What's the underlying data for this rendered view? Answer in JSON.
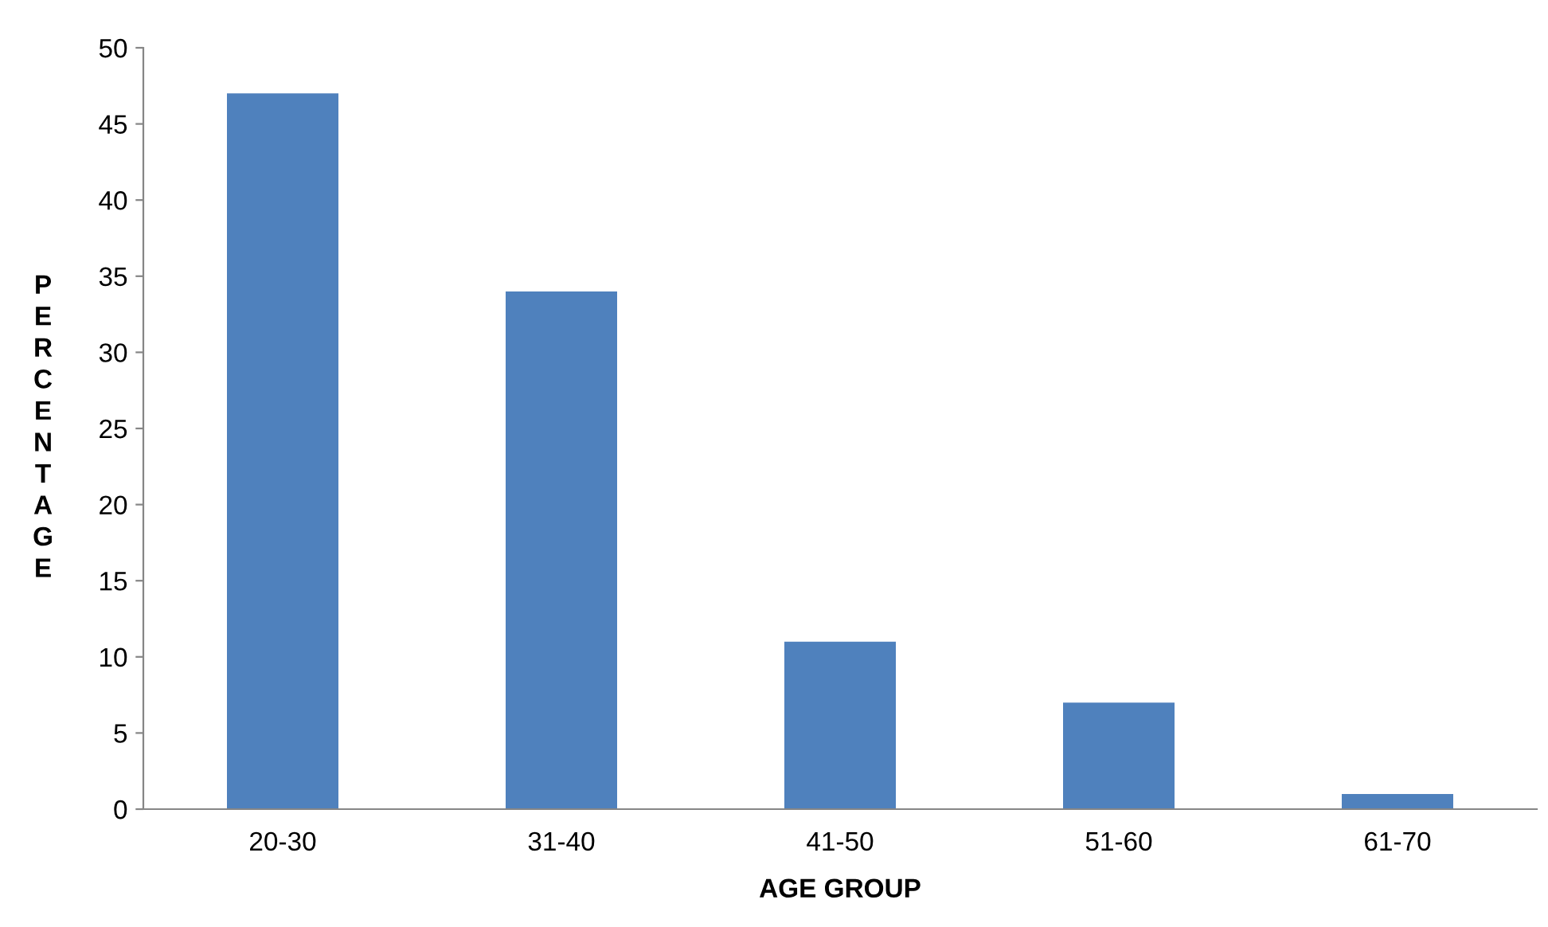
{
  "chart_data": {
    "type": "bar",
    "xlabel": "AGE GROUP",
    "ylabel": "PERCENTAGE",
    "categories": [
      "20-30",
      "31-40",
      "41-50",
      "51-60",
      "61-70"
    ],
    "values": [
      47,
      34,
      11,
      7,
      1
    ],
    "color": "#4f81bd",
    "ylim": [
      0,
      50
    ],
    "yticks": [
      0,
      5,
      10,
      15,
      20,
      25,
      30,
      35,
      40,
      45,
      50
    ],
    "grid": false,
    "legend": false
  }
}
